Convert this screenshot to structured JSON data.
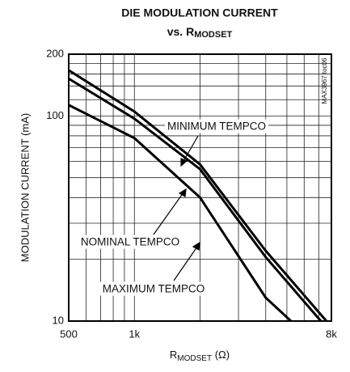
{
  "chart_data": {
    "type": "line",
    "title": "DIE MODULATION CURRENT",
    "subtitle": [
      "vs. R",
      "MODSET"
    ],
    "xlabel": [
      "R",
      "MODSET",
      " (Ω)"
    ],
    "ylabel": "MODULATION CURRENT (mA)",
    "note": "MAX3967 toc06",
    "log_x": true,
    "log_y": true,
    "grid": true,
    "xlim": [
      500,
      8000
    ],
    "ylim": [
      10,
      200
    ],
    "xticks": [
      500,
      {
        "value": 1000,
        "label": "1k"
      },
      {
        "value": 8000,
        "label": "8k"
      }
    ],
    "xminor": [
      600,
      700,
      800,
      900,
      2000,
      3000,
      4000,
      5000,
      6000,
      7000
    ],
    "yticks": [
      10,
      100,
      200
    ],
    "yminor": [
      20,
      30,
      40,
      50,
      60,
      70,
      80,
      90,
      120,
      140,
      160,
      180
    ],
    "series": [
      {
        "name": "MINIMUM TEMPCO",
        "color": "#000000",
        "x": [
          500,
          1000,
          2000,
          4000,
          7590
        ],
        "values": [
          167,
          105,
          58,
          22,
          10
        ]
      },
      {
        "name": "NOMINAL TEMPCO",
        "color": "#000000",
        "x": [
          500,
          1000,
          2000,
          4000,
          7160
        ],
        "values": [
          152,
          97,
          55,
          20.5,
          10
        ]
      },
      {
        "name": "MAXIMUM TEMPCO",
        "color": "#000000",
        "x": [
          500,
          1000,
          2000,
          4000,
          5220
        ],
        "values": [
          113,
          78,
          40,
          13,
          10
        ]
      }
    ]
  }
}
